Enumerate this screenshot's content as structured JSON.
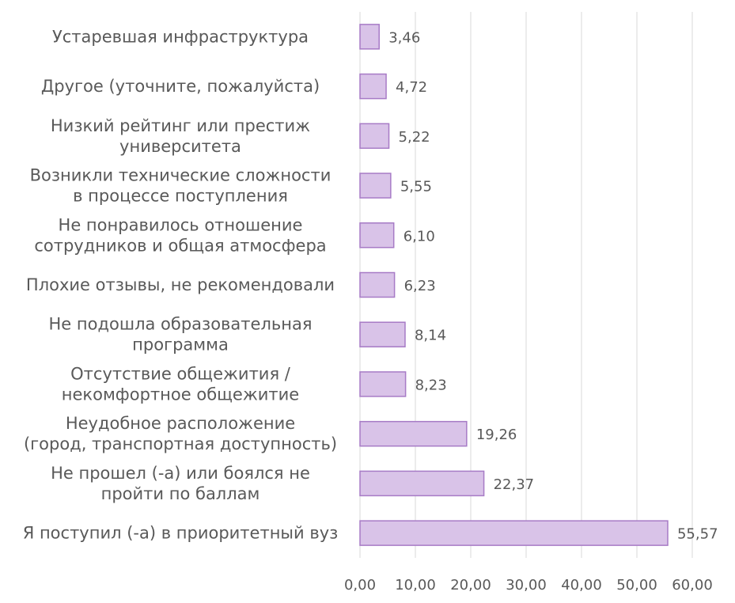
{
  "chart_data": {
    "type": "bar",
    "orientation": "horizontal",
    "categories": [
      [
        "Устаревшая инфраструктура"
      ],
      [
        "Другое (уточните, пожалуйста)"
      ],
      [
        "Низкий рейтинг или престиж",
        "университета"
      ],
      [
        "Возникли технические сложности",
        "в процессе поступления"
      ],
      [
        "Не понравилось отношение",
        "сотрудников и общая атмосфера"
      ],
      [
        "Плохие отзывы, не рекомендовали"
      ],
      [
        "Не подошла образовательная",
        "программа"
      ],
      [
        "Отсутствие общежития /",
        "некомфортное общежитие"
      ],
      [
        "Неудобное расположение",
        "(город, транспортная доступность)"
      ],
      [
        "Не прошел (-а) или боялся не",
        "пройти по баллам"
      ],
      [
        "Я поступил (-а) в приоритетный вуз"
      ]
    ],
    "values": [
      3.46,
      4.72,
      5.22,
      5.55,
      6.1,
      6.23,
      8.14,
      8.23,
      19.26,
      22.37,
      55.57
    ],
    "data_labels": [
      "3,46",
      "4,72",
      "5,22",
      "5,55",
      "6,10",
      "6,23",
      "8,14",
      "8,23",
      "19,26",
      "22,37",
      "55,57"
    ],
    "xlim": [
      0,
      60
    ],
    "x_ticks": [
      0,
      10,
      20,
      30,
      40,
      50,
      60
    ],
    "x_tick_labels": [
      "0,00",
      "10,00",
      "20,00",
      "30,00",
      "40,00",
      "50,00",
      "60,00"
    ],
    "grid": true,
    "legend": "none",
    "bar_fill": "#d9c3e8",
    "bar_stroke": "#a77bc6"
  }
}
